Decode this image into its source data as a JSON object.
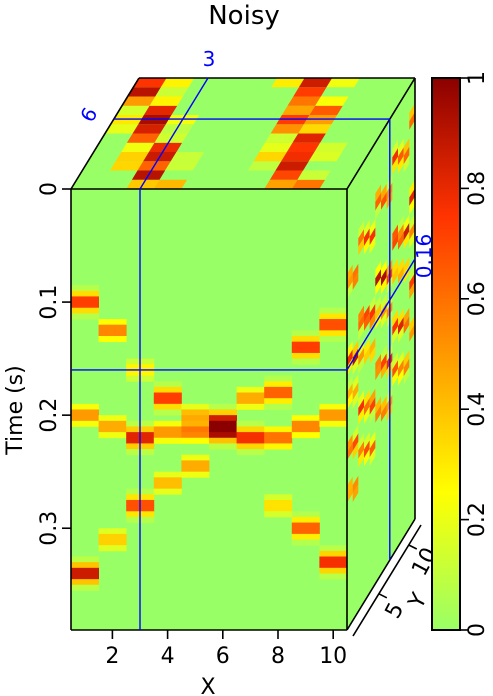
{
  "chart_data": {
    "type": "heatmap",
    "title": "Noisy",
    "xlabel": "X",
    "ylabel": "Time (s)",
    "zlabel": "Y",
    "x_ticks": [
      "2",
      "4",
      "6",
      "8",
      "10"
    ],
    "x_tick_values": [
      2,
      4,
      6,
      8,
      10
    ],
    "x_range": [
      0.5,
      10.5
    ],
    "y_ticks": [
      "0",
      "0.1",
      "0.2",
      "0.3"
    ],
    "y_tick_values": [
      0,
      0.1,
      0.2,
      0.3
    ],
    "y_range": [
      0,
      0.39
    ],
    "z_ticks": [
      "5",
      "10"
    ],
    "colorbar_ticks": [
      "0",
      "0.2",
      "0.4",
      "0.6",
      "0.8",
      "1"
    ],
    "colorbar_values": [
      0,
      0.2,
      0.4,
      0.6,
      0.8,
      1
    ],
    "colorbar_range": [
      0,
      1
    ],
    "slice_labels": {
      "x_slice": "3",
      "y_slice": "6",
      "time_slice": "0.16"
    },
    "slice_values": {
      "x": 3,
      "y": 6,
      "time": 0.16
    },
    "colormap": [
      "#99ff66",
      "#ffff00",
      "#ff9900",
      "#ff3300",
      "#8b0000"
    ],
    "front_traces": [
      {
        "x": 1,
        "events": [
          [
            0.1,
            0.8
          ],
          [
            0.2,
            0.55
          ],
          [
            0.34,
            0.95
          ]
        ]
      },
      {
        "x": 2,
        "events": [
          [
            0.125,
            0.6
          ],
          [
            0.21,
            0.5
          ],
          [
            0.31,
            0.4
          ]
        ]
      },
      {
        "x": 3,
        "events": [
          [
            0.16,
            0.3
          ],
          [
            0.22,
            0.9
          ],
          [
            0.28,
            0.75
          ]
        ]
      },
      {
        "x": 4,
        "events": [
          [
            0.185,
            0.8
          ],
          [
            0.215,
            0.55
          ],
          [
            0.26,
            0.45
          ]
        ]
      },
      {
        "x": 5,
        "events": [
          [
            0.2,
            0.45
          ],
          [
            0.215,
            0.6
          ],
          [
            0.245,
            0.5
          ]
        ]
      },
      {
        "x": 6,
        "events": [
          [
            0.205,
            0.85
          ],
          [
            0.215,
            0.95
          ]
        ]
      },
      {
        "x": 7,
        "events": [
          [
            0.185,
            0.5
          ],
          [
            0.22,
            0.85
          ]
        ]
      },
      {
        "x": 8,
        "events": [
          [
            0.18,
            0.7
          ],
          [
            0.22,
            0.65
          ],
          [
            0.28,
            0.35
          ]
        ]
      },
      {
        "x": 9,
        "events": [
          [
            0.14,
            0.8
          ],
          [
            0.21,
            0.6
          ],
          [
            0.3,
            0.7
          ]
        ]
      },
      {
        "x": 10,
        "events": [
          [
            0.12,
            0.75
          ],
          [
            0.2,
            0.55
          ],
          [
            0.33,
            0.85
          ]
        ]
      }
    ]
  }
}
